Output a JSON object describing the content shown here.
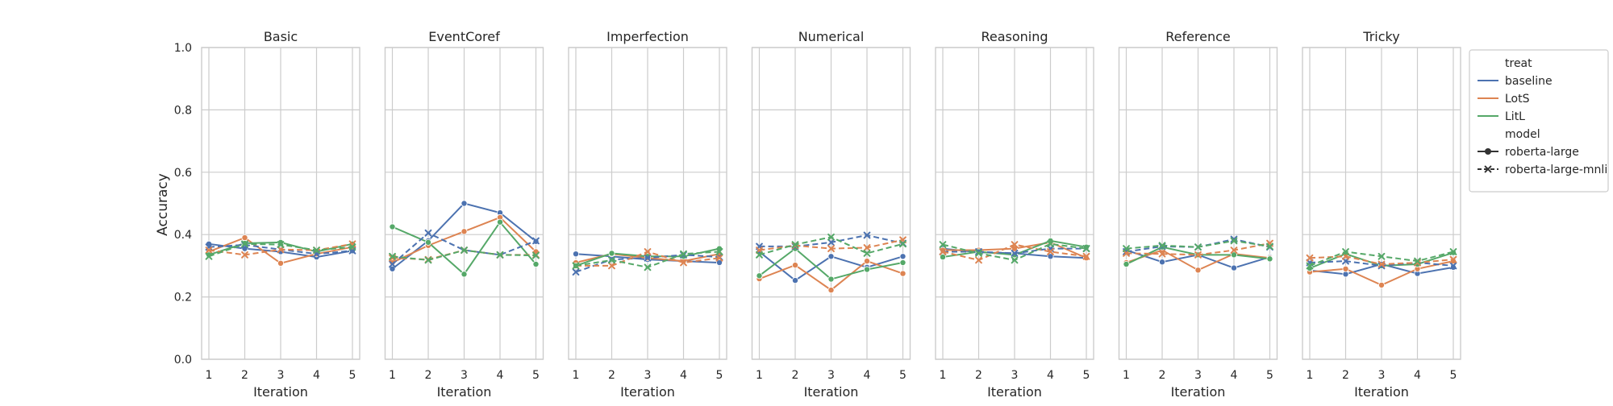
{
  "figure": {
    "ylabel": "Accuracy",
    "xlabel": "Iteration"
  },
  "legend": {
    "hue_title": "treat",
    "style_title": "model",
    "treat_entries": [
      "baseline",
      "LotS",
      "LitL"
    ],
    "model_entries": [
      "roberta-large",
      "roberta-large-mnli"
    ]
  },
  "colors": {
    "baseline": "#4c72b0",
    "LotS": "#dd8452",
    "LitL": "#55a868",
    "grid": "#cccccc",
    "frame": "#cccccc"
  },
  "chart_data": {
    "type": "line",
    "x": [
      1,
      2,
      3,
      4,
      5
    ],
    "x_ticks": [
      "1",
      "2",
      "3",
      "4",
      "5"
    ],
    "ylim": [
      0,
      1
    ],
    "y_ticks": [
      "0.0",
      "0.2",
      "0.4",
      "0.6",
      "0.8",
      "1.0"
    ],
    "grid": true,
    "legend_position": "right",
    "panels": [
      {
        "title": "Basic",
        "series": [
          {
            "treat": "baseline",
            "model": "roberta-large",
            "values": [
              0.37,
              0.355,
              0.345,
              0.328,
              0.348
            ]
          },
          {
            "treat": "LotS",
            "model": "roberta-large",
            "values": [
              0.345,
              0.39,
              0.308,
              0.338,
              0.36
            ]
          },
          {
            "treat": "LitL",
            "model": "roberta-large",
            "values": [
              0.335,
              0.372,
              0.375,
              0.345,
              0.37
            ]
          },
          {
            "treat": "baseline",
            "model": "roberta-large-mnli",
            "values": [
              0.36,
              0.367,
              0.352,
              0.338,
              0.348
            ]
          },
          {
            "treat": "LotS",
            "model": "roberta-large-mnli",
            "values": [
              0.35,
              0.335,
              0.352,
              0.35,
              0.37
            ]
          },
          {
            "treat": "LitL",
            "model": "roberta-large-mnli",
            "values": [
              0.33,
              0.37,
              0.368,
              0.35,
              0.36
            ]
          }
        ]
      },
      {
        "title": "EventCoref",
        "series": [
          {
            "treat": "baseline",
            "model": "roberta-large",
            "values": [
              0.29,
              0.38,
              0.5,
              0.47,
              0.378
            ]
          },
          {
            "treat": "LotS",
            "model": "roberta-large",
            "values": [
              0.31,
              0.365,
              0.41,
              0.455,
              0.345
            ]
          },
          {
            "treat": "LitL",
            "model": "roberta-large",
            "values": [
              0.425,
              0.375,
              0.273,
              0.44,
              0.305
            ]
          },
          {
            "treat": "baseline",
            "model": "roberta-large-mnli",
            "values": [
              0.305,
              0.405,
              0.35,
              0.335,
              0.38
            ]
          },
          {
            "treat": "LotS",
            "model": "roberta-large-mnli",
            "values": [
              0.325,
              0.32,
              0.35,
              0.335,
              0.335
            ]
          },
          {
            "treat": "LitL",
            "model": "roberta-large-mnli",
            "values": [
              0.33,
              0.318,
              0.35,
              0.335,
              0.333
            ]
          }
        ]
      },
      {
        "title": "Imperfection",
        "series": [
          {
            "treat": "baseline",
            "model": "roberta-large",
            "values": [
              0.338,
              0.33,
              0.32,
              0.315,
              0.31
            ]
          },
          {
            "treat": "LotS",
            "model": "roberta-large",
            "values": [
              0.31,
              0.338,
              0.325,
              0.315,
              0.338
            ]
          },
          {
            "treat": "LitL",
            "model": "roberta-large",
            "values": [
              0.3,
              0.34,
              0.33,
              0.33,
              0.355
            ]
          },
          {
            "treat": "baseline",
            "model": "roberta-large-mnli",
            "values": [
              0.28,
              0.32,
              0.325,
              0.335,
              0.328
            ]
          },
          {
            "treat": "LotS",
            "model": "roberta-large-mnli",
            "values": [
              0.3,
              0.3,
              0.345,
              0.31,
              0.325
            ]
          },
          {
            "treat": "LitL",
            "model": "roberta-large-mnli",
            "values": [
              0.3,
              0.318,
              0.295,
              0.338,
              0.345
            ]
          }
        ]
      },
      {
        "title": "Numerical",
        "series": [
          {
            "treat": "baseline",
            "model": "roberta-large",
            "values": [
              0.345,
              0.253,
              0.33,
              0.295,
              0.33
            ]
          },
          {
            "treat": "LotS",
            "model": "roberta-large",
            "values": [
              0.258,
              0.302,
              0.222,
              0.315,
              0.275
            ]
          },
          {
            "treat": "LitL",
            "model": "roberta-large",
            "values": [
              0.268,
              0.355,
              0.257,
              0.288,
              0.31
            ]
          },
          {
            "treat": "baseline",
            "model": "roberta-large-mnli",
            "values": [
              0.362,
              0.362,
              0.375,
              0.398,
              0.372
            ]
          },
          {
            "treat": "LotS",
            "model": "roberta-large-mnli",
            "values": [
              0.35,
              0.365,
              0.355,
              0.358,
              0.383
            ]
          },
          {
            "treat": "LitL",
            "model": "roberta-large-mnli",
            "values": [
              0.335,
              0.368,
              0.392,
              0.34,
              0.37
            ]
          }
        ]
      },
      {
        "title": "Reasoning",
        "series": [
          {
            "treat": "baseline",
            "model": "roberta-large",
            "values": [
              0.355,
              0.343,
              0.34,
              0.33,
              0.325
            ]
          },
          {
            "treat": "LotS",
            "model": "roberta-large",
            "values": [
              0.35,
              0.35,
              0.355,
              0.375,
              0.325
            ]
          },
          {
            "treat": "LitL",
            "model": "roberta-large",
            "values": [
              0.328,
              0.345,
              0.335,
              0.38,
              0.36
            ]
          },
          {
            "treat": "baseline",
            "model": "roberta-large-mnli",
            "values": [
              0.345,
              0.345,
              0.34,
              0.355,
              0.355
            ]
          },
          {
            "treat": "LotS",
            "model": "roberta-large-mnli",
            "values": [
              0.345,
              0.318,
              0.368,
              0.345,
              0.33
            ]
          },
          {
            "treat": "LitL",
            "model": "roberta-large-mnli",
            "values": [
              0.368,
              0.34,
              0.318,
              0.37,
              0.355
            ]
          }
        ]
      },
      {
        "title": "Reference",
        "series": [
          {
            "treat": "baseline",
            "model": "roberta-large",
            "values": [
              0.35,
              0.312,
              0.335,
              0.293,
              0.328
            ]
          },
          {
            "treat": "LotS",
            "model": "roberta-large",
            "values": [
              0.31,
              0.35,
              0.286,
              0.338,
              0.325
            ]
          },
          {
            "treat": "LitL",
            "model": "roberta-large",
            "values": [
              0.305,
              0.36,
              0.335,
              0.335,
              0.322
            ]
          },
          {
            "treat": "baseline",
            "model": "roberta-large-mnli",
            "values": [
              0.345,
              0.362,
              0.36,
              0.385,
              0.36
            ]
          },
          {
            "treat": "LotS",
            "model": "roberta-large-mnli",
            "values": [
              0.34,
              0.338,
              0.335,
              0.35,
              0.372
            ]
          },
          {
            "treat": "LitL",
            "model": "roberta-large-mnli",
            "values": [
              0.355,
              0.365,
              0.36,
              0.38,
              0.362
            ]
          }
        ]
      },
      {
        "title": "Tricky",
        "series": [
          {
            "treat": "baseline",
            "model": "roberta-large",
            "values": [
              0.285,
              0.273,
              0.305,
              0.275,
              0.295
            ]
          },
          {
            "treat": "LotS",
            "model": "roberta-large",
            "values": [
              0.28,
              0.29,
              0.238,
              0.29,
              0.315
            ]
          },
          {
            "treat": "LitL",
            "model": "roberta-large",
            "values": [
              0.292,
              0.338,
              0.3,
              0.305,
              0.342
            ]
          },
          {
            "treat": "baseline",
            "model": "roberta-large-mnli",
            "values": [
              0.31,
              0.315,
              0.3,
              0.31,
              0.3
            ]
          },
          {
            "treat": "LotS",
            "model": "roberta-large-mnli",
            "values": [
              0.325,
              0.33,
              0.305,
              0.31,
              0.32
            ]
          },
          {
            "treat": "LitL",
            "model": "roberta-large-mnli",
            "values": [
              0.3,
              0.345,
              0.33,
              0.315,
              0.345
            ]
          }
        ]
      }
    ]
  }
}
